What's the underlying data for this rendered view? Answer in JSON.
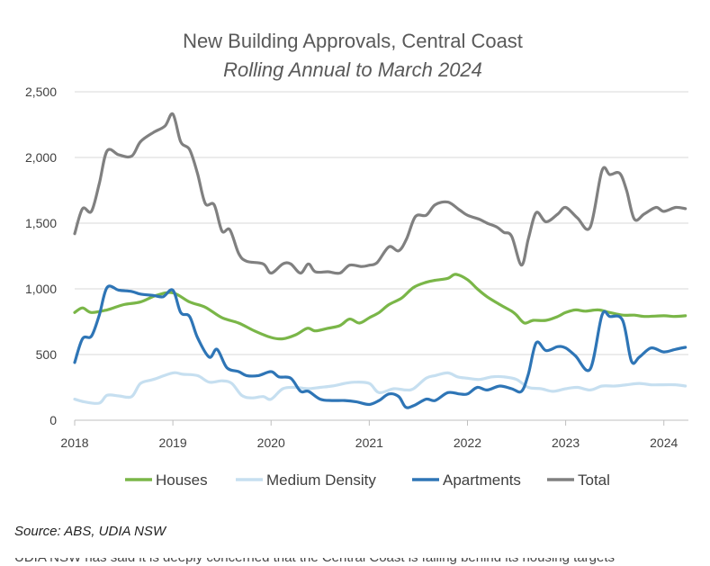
{
  "chart_data": {
    "type": "line",
    "title": "New Building Approvals, Central Coast",
    "subtitle": "Rolling Annual to March 2024",
    "xlabel": "",
    "ylabel": "",
    "xlim": [
      2018,
      2024.25
    ],
    "ylim": [
      0,
      2500
    ],
    "x_ticks": [
      2018,
      2019,
      2020,
      2021,
      2022,
      2023,
      2024
    ],
    "y_ticks": [
      0,
      500,
      1000,
      1500,
      2000,
      2500
    ],
    "y_tick_labels": [
      "0",
      "500",
      "1,000",
      "1,500",
      "2,000",
      "2,500"
    ],
    "grid": "horizontal",
    "legend_position": "bottom",
    "series": [
      {
        "name": "Houses",
        "color": "#7ab648",
        "points": [
          [
            2018.0,
            820
          ],
          [
            2018.08,
            855
          ],
          [
            2018.17,
            820
          ],
          [
            2018.33,
            840
          ],
          [
            2018.5,
            880
          ],
          [
            2018.67,
            900
          ],
          [
            2018.83,
            950
          ],
          [
            2019.0,
            970
          ],
          [
            2019.17,
            900
          ],
          [
            2019.33,
            860
          ],
          [
            2019.5,
            780
          ],
          [
            2019.67,
            740
          ],
          [
            2019.83,
            680
          ],
          [
            2020.0,
            630
          ],
          [
            2020.12,
            620
          ],
          [
            2020.25,
            650
          ],
          [
            2020.37,
            700
          ],
          [
            2020.45,
            680
          ],
          [
            2020.58,
            700
          ],
          [
            2020.7,
            720
          ],
          [
            2020.8,
            770
          ],
          [
            2020.9,
            740
          ],
          [
            2021.0,
            780
          ],
          [
            2021.1,
            820
          ],
          [
            2021.2,
            880
          ],
          [
            2021.33,
            930
          ],
          [
            2021.45,
            1010
          ],
          [
            2021.58,
            1050
          ],
          [
            2021.67,
            1065
          ],
          [
            2021.8,
            1080
          ],
          [
            2021.88,
            1110
          ],
          [
            2022.0,
            1070
          ],
          [
            2022.1,
            1000
          ],
          [
            2022.2,
            940
          ],
          [
            2022.33,
            880
          ],
          [
            2022.45,
            830
          ],
          [
            2022.5,
            800
          ],
          [
            2022.58,
            740
          ],
          [
            2022.67,
            760
          ],
          [
            2022.8,
            760
          ],
          [
            2022.92,
            790
          ],
          [
            2023.0,
            820
          ],
          [
            2023.1,
            840
          ],
          [
            2023.2,
            830
          ],
          [
            2023.33,
            840
          ],
          [
            2023.45,
            820
          ],
          [
            2023.58,
            800
          ],
          [
            2023.7,
            800
          ],
          [
            2023.8,
            790
          ],
          [
            2024.0,
            795
          ],
          [
            2024.1,
            790
          ],
          [
            2024.22,
            795
          ]
        ]
      },
      {
        "name": "Medium Density",
        "color": "#c6dff0",
        "points": [
          [
            2018.0,
            160
          ],
          [
            2018.1,
            140
          ],
          [
            2018.25,
            130
          ],
          [
            2018.33,
            190
          ],
          [
            2018.45,
            185
          ],
          [
            2018.58,
            180
          ],
          [
            2018.67,
            280
          ],
          [
            2018.8,
            310
          ],
          [
            2019.0,
            360
          ],
          [
            2019.1,
            350
          ],
          [
            2019.25,
            340
          ],
          [
            2019.37,
            290
          ],
          [
            2019.5,
            300
          ],
          [
            2019.6,
            280
          ],
          [
            2019.7,
            190
          ],
          [
            2019.8,
            170
          ],
          [
            2019.92,
            180
          ],
          [
            2020.0,
            160
          ],
          [
            2020.12,
            240
          ],
          [
            2020.25,
            250
          ],
          [
            2020.37,
            240
          ],
          [
            2020.5,
            250
          ],
          [
            2020.62,
            260
          ],
          [
            2020.75,
            280
          ],
          [
            2020.85,
            290
          ],
          [
            2021.0,
            280
          ],
          [
            2021.1,
            210
          ],
          [
            2021.25,
            240
          ],
          [
            2021.37,
            230
          ],
          [
            2021.45,
            240
          ],
          [
            2021.58,
            320
          ],
          [
            2021.67,
            340
          ],
          [
            2021.8,
            360
          ],
          [
            2021.9,
            330
          ],
          [
            2022.0,
            320
          ],
          [
            2022.12,
            310
          ],
          [
            2022.25,
            330
          ],
          [
            2022.37,
            330
          ],
          [
            2022.5,
            310
          ],
          [
            2022.62,
            250
          ],
          [
            2022.75,
            240
          ],
          [
            2022.87,
            220
          ],
          [
            2023.0,
            240
          ],
          [
            2023.12,
            250
          ],
          [
            2023.25,
            230
          ],
          [
            2023.37,
            260
          ],
          [
            2023.5,
            260
          ],
          [
            2023.62,
            270
          ],
          [
            2023.75,
            280
          ],
          [
            2023.87,
            270
          ],
          [
            2024.0,
            270
          ],
          [
            2024.12,
            270
          ],
          [
            2024.22,
            260
          ]
        ]
      },
      {
        "name": "Apartments",
        "color": "#2e75b6",
        "points": [
          [
            2018.0,
            440
          ],
          [
            2018.08,
            620
          ],
          [
            2018.17,
            640
          ],
          [
            2018.25,
            800
          ],
          [
            2018.33,
            1010
          ],
          [
            2018.45,
            990
          ],
          [
            2018.58,
            980
          ],
          [
            2018.67,
            960
          ],
          [
            2018.8,
            950
          ],
          [
            2018.9,
            940
          ],
          [
            2019.0,
            990
          ],
          [
            2019.08,
            820
          ],
          [
            2019.17,
            790
          ],
          [
            2019.25,
            630
          ],
          [
            2019.37,
            480
          ],
          [
            2019.45,
            540
          ],
          [
            2019.55,
            400
          ],
          [
            2019.67,
            370
          ],
          [
            2019.75,
            340
          ],
          [
            2019.87,
            340
          ],
          [
            2020.0,
            370
          ],
          [
            2020.08,
            330
          ],
          [
            2020.2,
            320
          ],
          [
            2020.3,
            220
          ],
          [
            2020.38,
            220
          ],
          [
            2020.5,
            160
          ],
          [
            2020.62,
            150
          ],
          [
            2020.75,
            150
          ],
          [
            2020.87,
            140
          ],
          [
            2021.0,
            120
          ],
          [
            2021.1,
            150
          ],
          [
            2021.2,
            200
          ],
          [
            2021.3,
            180
          ],
          [
            2021.37,
            100
          ],
          [
            2021.45,
            110
          ],
          [
            2021.58,
            160
          ],
          [
            2021.67,
            150
          ],
          [
            2021.8,
            210
          ],
          [
            2021.92,
            200
          ],
          [
            2022.0,
            200
          ],
          [
            2022.1,
            250
          ],
          [
            2022.2,
            230
          ],
          [
            2022.33,
            260
          ],
          [
            2022.45,
            240
          ],
          [
            2022.55,
            220
          ],
          [
            2022.62,
            350
          ],
          [
            2022.7,
            590
          ],
          [
            2022.8,
            530
          ],
          [
            2022.92,
            560
          ],
          [
            2023.0,
            550
          ],
          [
            2023.1,
            490
          ],
          [
            2023.25,
            390
          ],
          [
            2023.37,
            800
          ],
          [
            2023.45,
            790
          ],
          [
            2023.58,
            760
          ],
          [
            2023.67,
            450
          ],
          [
            2023.75,
            480
          ],
          [
            2023.87,
            550
          ],
          [
            2024.0,
            520
          ],
          [
            2024.12,
            540
          ],
          [
            2024.22,
            555
          ]
        ]
      },
      {
        "name": "Total",
        "color": "#808080",
        "points": [
          [
            2018.0,
            1420
          ],
          [
            2018.08,
            1610
          ],
          [
            2018.17,
            1590
          ],
          [
            2018.25,
            1800
          ],
          [
            2018.33,
            2050
          ],
          [
            2018.45,
            2020
          ],
          [
            2018.58,
            2010
          ],
          [
            2018.67,
            2120
          ],
          [
            2018.8,
            2190
          ],
          [
            2018.92,
            2240
          ],
          [
            2019.0,
            2330
          ],
          [
            2019.08,
            2120
          ],
          [
            2019.17,
            2060
          ],
          [
            2019.25,
            1880
          ],
          [
            2019.33,
            1650
          ],
          [
            2019.42,
            1640
          ],
          [
            2019.5,
            1440
          ],
          [
            2019.58,
            1450
          ],
          [
            2019.67,
            1270
          ],
          [
            2019.75,
            1210
          ],
          [
            2019.92,
            1190
          ],
          [
            2020.0,
            1120
          ],
          [
            2020.12,
            1190
          ],
          [
            2020.2,
            1190
          ],
          [
            2020.3,
            1120
          ],
          [
            2020.38,
            1190
          ],
          [
            2020.45,
            1130
          ],
          [
            2020.58,
            1130
          ],
          [
            2020.7,
            1120
          ],
          [
            2020.8,
            1180
          ],
          [
            2020.92,
            1170
          ],
          [
            2021.0,
            1180
          ],
          [
            2021.08,
            1200
          ],
          [
            2021.2,
            1320
          ],
          [
            2021.3,
            1290
          ],
          [
            2021.38,
            1380
          ],
          [
            2021.47,
            1550
          ],
          [
            2021.58,
            1560
          ],
          [
            2021.67,
            1640
          ],
          [
            2021.8,
            1660
          ],
          [
            2021.92,
            1600
          ],
          [
            2022.0,
            1560
          ],
          [
            2022.12,
            1530
          ],
          [
            2022.2,
            1500
          ],
          [
            2022.3,
            1470
          ],
          [
            2022.37,
            1430
          ],
          [
            2022.45,
            1400
          ],
          [
            2022.55,
            1180
          ],
          [
            2022.62,
            1380
          ],
          [
            2022.7,
            1580
          ],
          [
            2022.8,
            1510
          ],
          [
            2022.92,
            1570
          ],
          [
            2023.0,
            1620
          ],
          [
            2023.12,
            1540
          ],
          [
            2023.25,
            1470
          ],
          [
            2023.37,
            1900
          ],
          [
            2023.45,
            1870
          ],
          [
            2023.55,
            1880
          ],
          [
            2023.62,
            1750
          ],
          [
            2023.7,
            1530
          ],
          [
            2023.8,
            1570
          ],
          [
            2023.92,
            1620
          ],
          [
            2024.0,
            1590
          ],
          [
            2024.12,
            1620
          ],
          [
            2024.22,
            1610
          ]
        ]
      }
    ]
  },
  "footer": {
    "source": "Source:  ABS, UDIA NSW",
    "cutoff_text": "UDIA NSW has said it is deeply concerned that the Central Coast is falling behind its housing targets"
  }
}
